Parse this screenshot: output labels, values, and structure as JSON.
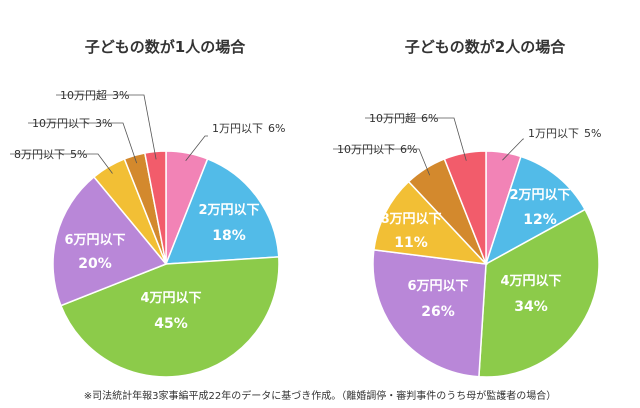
{
  "colors": {
    "pink": "#F283B6",
    "blue": "#52BBE8",
    "green": "#8CCB4A",
    "purple": "#B987D8",
    "yellow": "#F2BF35",
    "brown": "#D3892D",
    "red": "#F25C6B"
  },
  "chart_data": [
    {
      "type": "pie",
      "title": "子どもの数が1人の場合",
      "slices": [
        {
          "label": "1万円以下",
          "value": 6,
          "display": "6%",
          "color": "#F283B6",
          "placement": "outside"
        },
        {
          "label": "2万円以下",
          "value": 18,
          "display": "18%",
          "color": "#52BBE8",
          "placement": "inside"
        },
        {
          "label": "4万円以下",
          "value": 45,
          "display": "45%",
          "color": "#8CCB4A",
          "placement": "inside"
        },
        {
          "label": "6万円以下",
          "value": 20,
          "display": "20%",
          "color": "#B987D8",
          "placement": "inside"
        },
        {
          "label": "8万円以下",
          "value": 5,
          "display": "5%",
          "color": "#F2BF35",
          "placement": "outside"
        },
        {
          "label": "10万円以下",
          "value": 3,
          "display": "3%",
          "color": "#D3892D",
          "placement": "outside"
        },
        {
          "label": "10万円超",
          "value": 3,
          "display": "3%",
          "color": "#F25C6B",
          "placement": "outside"
        }
      ]
    },
    {
      "type": "pie",
      "title": "子どもの数が2人の場合",
      "slices": [
        {
          "label": "1万円以下",
          "value": 5,
          "display": "5%",
          "color": "#F283B6",
          "placement": "outside"
        },
        {
          "label": "2万円以下",
          "value": 12,
          "display": "12%",
          "color": "#52BBE8",
          "placement": "inside"
        },
        {
          "label": "4万円以下",
          "value": 34,
          "display": "34%",
          "color": "#8CCB4A",
          "placement": "inside"
        },
        {
          "label": "6万円以下",
          "value": 26,
          "display": "26%",
          "color": "#B987D8",
          "placement": "inside"
        },
        {
          "label": "8万円以下",
          "value": 11,
          "display": "11%",
          "color": "#F2BF35",
          "placement": "inside"
        },
        {
          "label": "10万円以下",
          "value": 6,
          "display": "6%",
          "color": "#D3892D",
          "placement": "outside"
        },
        {
          "label": "10万円超",
          "value": 6,
          "display": "6%",
          "color": "#F25C6B",
          "placement": "outside"
        }
      ]
    }
  ],
  "footnote": "※司法統計年報3家事編平成22年のデータに基づき作成。（離婚調停・審判事件のうち母が監護者の場合）"
}
